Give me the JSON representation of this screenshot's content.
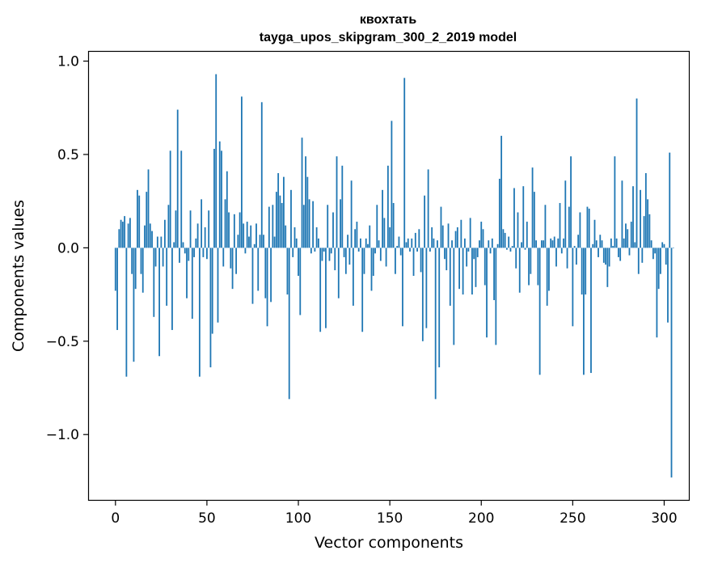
{
  "chart_data": {
    "type": "bar",
    "title": "квохтать",
    "subtitle": "tayga_upos_skipgram_300_2_2019 model",
    "xlabel": "Vector components",
    "ylabel": "Components values",
    "xlim": [
      -14.5,
      313.5
    ],
    "ylim": [
      -1.35,
      1.05
    ],
    "xticks": [
      0,
      50,
      100,
      150,
      200,
      250,
      300
    ],
    "xtick_labels": [
      "0",
      "50",
      "100",
      "150",
      "200",
      "250",
      "300"
    ],
    "yticks": [
      -1.0,
      -0.5,
      0.0,
      0.5,
      1.0
    ],
    "ytick_labels": [
      "−1.0",
      "−0.5",
      "0.0",
      "0.5",
      "1.0"
    ],
    "grid": false,
    "bar_color": "#1f77b4",
    "values": [
      -0.23,
      -0.44,
      0.1,
      0.15,
      0.14,
      0.17,
      -0.69,
      0.13,
      0.16,
      -0.14,
      -0.61,
      -0.22,
      0.31,
      0.28,
      -0.14,
      -0.24,
      0.12,
      0.3,
      0.42,
      0.13,
      0.09,
      -0.37,
      -0.1,
      0.06,
      -0.58,
      0.06,
      -0.1,
      0.15,
      -0.31,
      0.23,
      0.52,
      -0.44,
      0.03,
      0.2,
      0.74,
      -0.08,
      0.52,
      0.03,
      -0.03,
      -0.27,
      -0.07,
      0.2,
      -0.38,
      -0.05,
      0.05,
      0.13,
      -0.69,
      0.26,
      -0.05,
      0.11,
      -0.06,
      0.2,
      -0.64,
      -0.46,
      0.53,
      0.93,
      -0.4,
      0.57,
      0.52,
      -0.1,
      0.26,
      0.41,
      0.19,
      -0.11,
      -0.22,
      0.18,
      -0.14,
      0.07,
      0.19,
      0.81,
      0.13,
      -0.03,
      0.14,
      0.06,
      0.12,
      -0.3,
      0.02,
      0.13,
      -0.23,
      0.07,
      0.78,
      0.07,
      -0.27,
      -0.42,
      0.22,
      -0.29,
      0.23,
      0.06,
      0.3,
      0.4,
      0.28,
      0.24,
      0.38,
      0.12,
      -0.25,
      -0.81,
      0.31,
      -0.05,
      0.11,
      0.05,
      -0.15,
      -0.36,
      0.59,
      0.23,
      0.49,
      0.38,
      0.26,
      -0.03,
      0.25,
      -0.02,
      0.11,
      0.05,
      -0.45,
      -0.07,
      -0.02,
      -0.43,
      0.23,
      -0.07,
      -0.03,
      0.19,
      -0.12,
      0.49,
      -0.27,
      0.26,
      0.44,
      -0.05,
      -0.14,
      0.07,
      -0.09,
      0.36,
      -0.31,
      0.1,
      0.14,
      -0.02,
      0.05,
      -0.45,
      -0.14,
      0.05,
      0.02,
      0.12,
      -0.23,
      -0.15,
      -0.03,
      0.23,
      0.04,
      -0.07,
      0.31,
      0.16,
      -0.1,
      0.44,
      0.11,
      0.68,
      0.24,
      -0.14,
      0.01,
      0.06,
      -0.04,
      -0.42,
      0.91,
      0.03,
      0.05,
      -0.02,
      0.05,
      -0.15,
      0.08,
      -0.02,
      0.1,
      -0.13,
      -0.5,
      0.28,
      -0.43,
      0.42,
      -0.02,
      0.11,
      0.05,
      -0.81,
      0.04,
      -0.64,
      0.22,
      0.12,
      -0.06,
      -0.12,
      0.13,
      -0.31,
      0.04,
      -0.52,
      0.09,
      0.11,
      -0.22,
      0.15,
      -0.25,
      0.05,
      -0.1,
      -0.02,
      0.16,
      -0.25,
      -0.06,
      -0.21,
      -0.05,
      0.04,
      0.14,
      0.1,
      -0.2,
      -0.48,
      0.04,
      -0.03,
      0.05,
      -0.28,
      -0.52,
      0.02,
      0.37,
      0.6,
      0.1,
      0.08,
      -0.01,
      0.06,
      -0.02,
      0.01,
      0.32,
      -0.11,
      0.19,
      -0.24,
      0.03,
      0.33,
      -0.01,
      0.14,
      -0.2,
      -0.14,
      0.43,
      0.3,
      0.04,
      -0.2,
      -0.68,
      0.04,
      0.04,
      0.23,
      -0.31,
      -0.23,
      0.05,
      0.04,
      0.06,
      -0.1,
      0.05,
      0.24,
      -0.03,
      0.05,
      0.36,
      -0.11,
      0.22,
      0.49,
      -0.42,
      0.01,
      -0.09,
      0.07,
      0.19,
      -0.25,
      -0.68,
      -0.25,
      0.22,
      0.21,
      -0.67,
      0.02,
      0.15,
      0.04,
      -0.05,
      0.07,
      0.04,
      -0.08,
      -0.09,
      -0.21,
      -0.1,
      0.05,
      0.01,
      0.49,
      0.05,
      -0.05,
      -0.07,
      0.36,
      0.05,
      0.13,
      0.1,
      -0.04,
      0.14,
      0.33,
      0.03,
      0.8,
      -0.14,
      0.31,
      -0.08,
      0.17,
      0.4,
      0.26,
      0.18,
      0.04,
      -0.06,
      -0.03,
      -0.48,
      -0.22,
      -0.14,
      0.03,
      0.02,
      -0.09,
      -0.4,
      0.51,
      -1.23,
      0.0
    ]
  }
}
